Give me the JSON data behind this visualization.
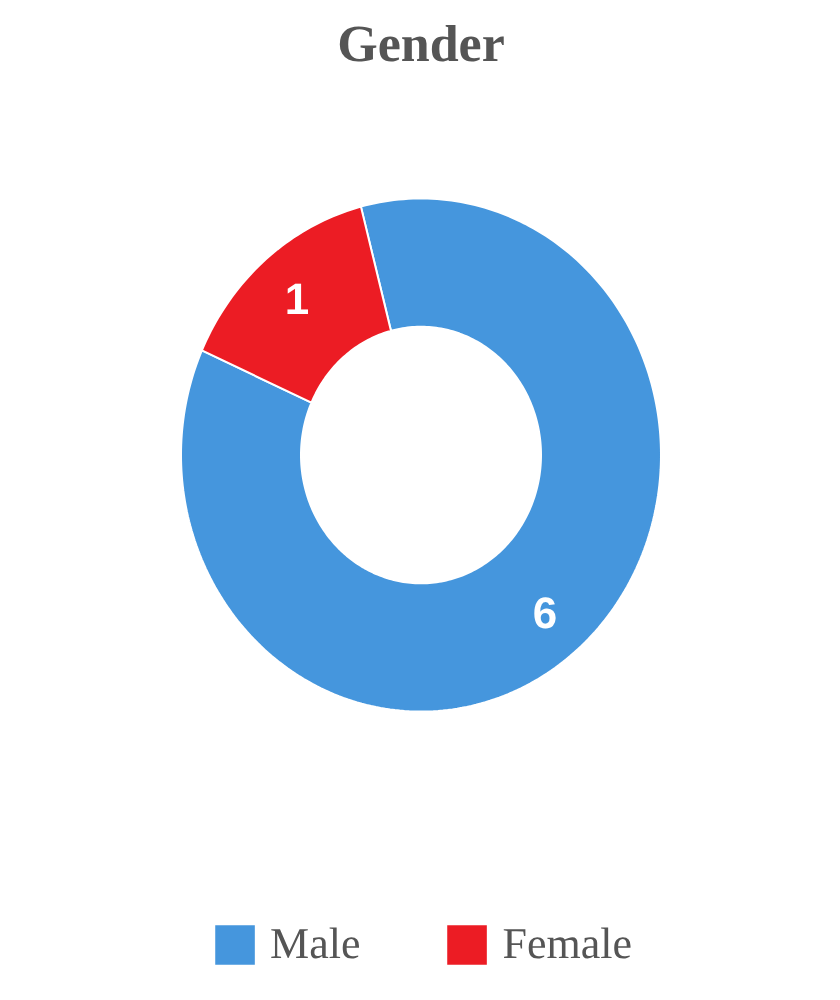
{
  "chart_data": {
    "type": "donut",
    "title": "Gender",
    "categories": [
      "Male",
      "Female"
    ],
    "values": [
      6,
      1
    ],
    "colors": [
      "#4596dd",
      "#ec1c24"
    ],
    "data_labels": true,
    "legend": "bottom"
  }
}
